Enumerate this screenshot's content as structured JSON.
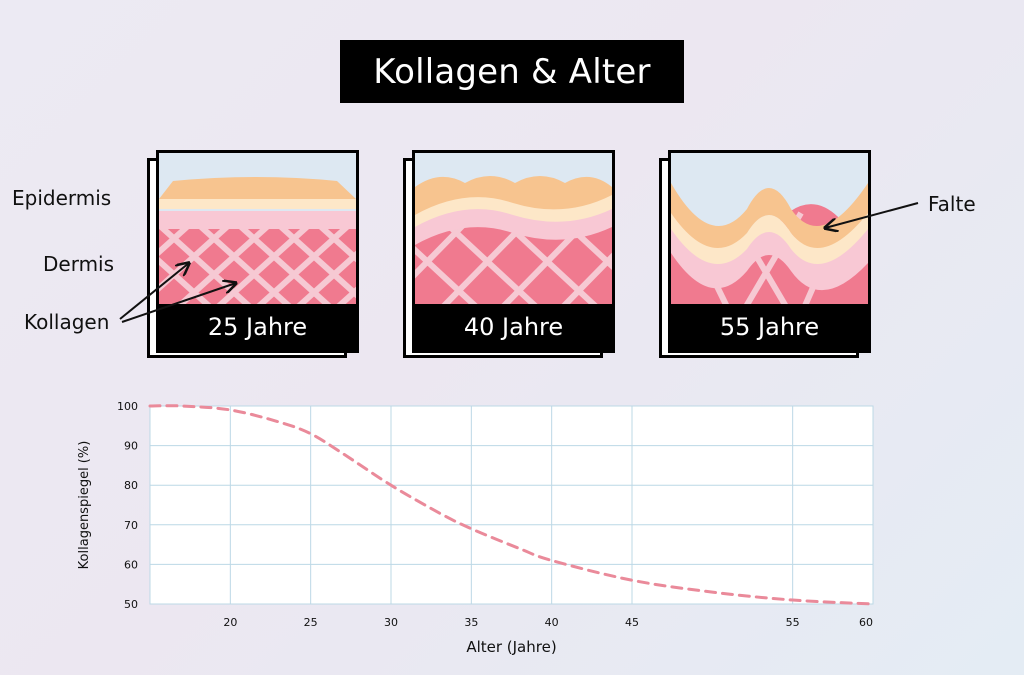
{
  "title": "Kollagen & Alter",
  "labels": {
    "epidermis": "Epidermis",
    "dermis": "Dermis",
    "collagen": "Kollagen",
    "wrinkle": "Falte"
  },
  "panels": [
    {
      "age_label": "25 Jahre"
    },
    {
      "age_label": "40 Jahre"
    },
    {
      "age_label": "55 Jahre"
    }
  ],
  "colors": {
    "epidermis_top": "#f7c48f",
    "epidermis_light": "#fde7c8",
    "epidermis_pink": "#f8c8d4",
    "dermis": "#f07a8f",
    "sky": "#dde8f2",
    "curve": "#ea8a9a",
    "grid": "#bcd8e6"
  },
  "chart_data": {
    "type": "line",
    "title": "",
    "xlabel": "Alter (Jahre)",
    "ylabel": "Kollagenspiegel (%)",
    "xlim": [
      15,
      60
    ],
    "ylim": [
      50,
      100
    ],
    "x_ticks": [
      20,
      25,
      30,
      35,
      40,
      45,
      55,
      60
    ],
    "y_ticks": [
      50,
      60,
      70,
      80,
      90,
      100
    ],
    "grid": true,
    "series": [
      {
        "style": "dashed",
        "x": [
          15,
          17,
          20,
          23,
          25,
          27,
          30,
          33,
          35,
          38,
          40,
          45,
          50,
          55,
          60
        ],
        "y": [
          100,
          100,
          99,
          96,
          93,
          88,
          80,
          73,
          69,
          64,
          61,
          56,
          53,
          51,
          50
        ]
      }
    ]
  }
}
